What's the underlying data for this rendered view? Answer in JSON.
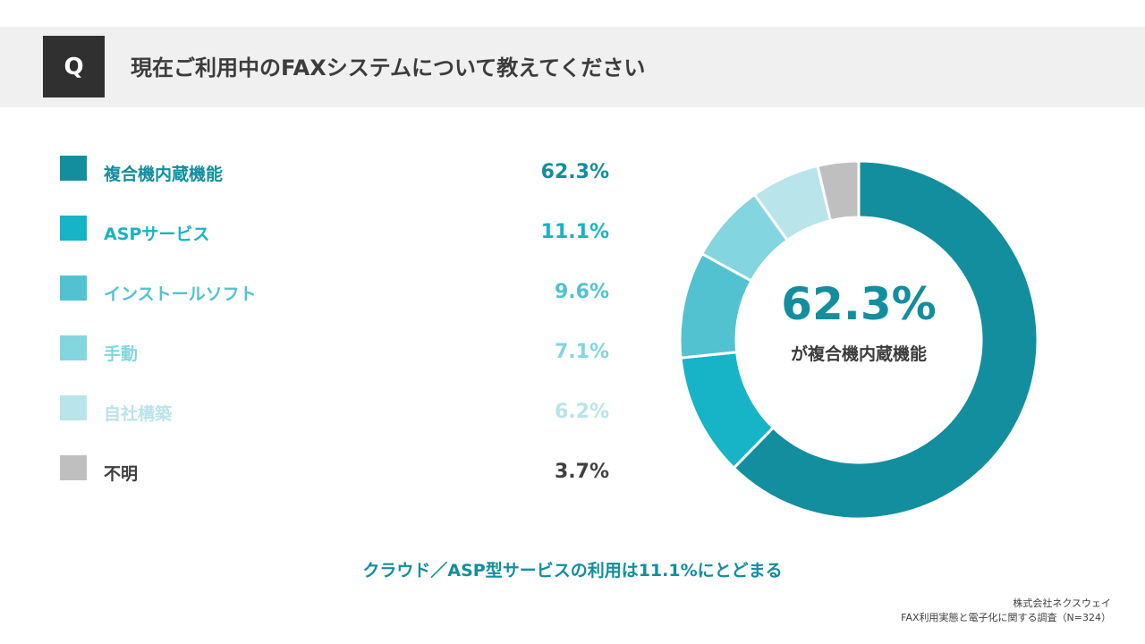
{
  "header": {
    "q_label": "Q",
    "title": "現在ご利用中のFAXシステムについて教えてください"
  },
  "chart_data": {
    "type": "pie",
    "categories": [
      "複合機内蔵機能",
      "ASPサービス",
      "インストールソフト",
      "手動",
      "自社構築",
      "不明"
    ],
    "values": [
      62.3,
      11.1,
      9.6,
      7.1,
      6.2,
      3.7
    ],
    "value_labels": [
      "62.3%",
      "11.1%",
      "9.6%",
      "7.1%",
      "6.2%",
      "3.7%"
    ],
    "colors": [
      "#128e9e",
      "#17b3c6",
      "#52c2d1",
      "#83d5df",
      "#b8e4ea",
      "#bfbfbf"
    ],
    "label_colors": [
      "#128e9e",
      "#17b3c6",
      "#52c2d1",
      "#83d5df",
      "#b8e4ea",
      "#404040"
    ],
    "donut": true,
    "legend_position": "left",
    "center_value": "62.3%",
    "center_label": "が複合機内蔵機能"
  },
  "summary": "クラウド／ASP型サービスの利用は11.1%にとどまる",
  "credit": {
    "company": "株式会社ネクスウェイ",
    "survey": "FAX利用実態と電子化に関する調査（N=324）"
  }
}
